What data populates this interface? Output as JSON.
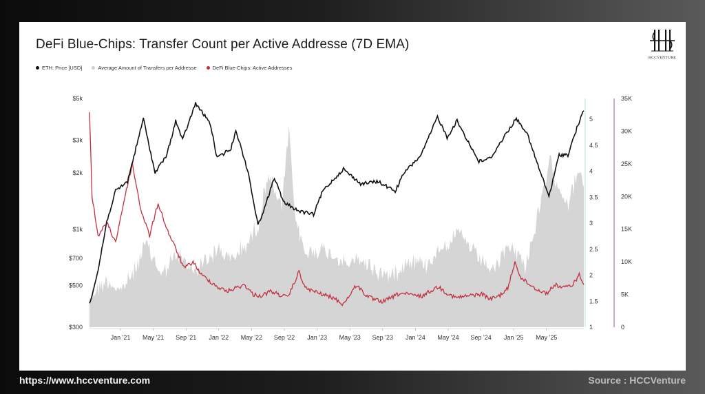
{
  "title": "DeFi Blue-Chips: Transfer Count per Active Addresse (7D  EMA)",
  "logo_text": "HCCVENTURE",
  "footer": {
    "url": "https://www.hccventure.com",
    "source": "Source : HCCVenture"
  },
  "chart_data": {
    "type": "line",
    "title": "DeFi Blue-Chips: Transfer Count per Active Addresse (7D  EMA)",
    "x_tick_labels": [
      "Jan '21",
      "May '21",
      "Sep '21",
      "Jan '22",
      "May '22",
      "Sep '22",
      "Jan '23",
      "May '23",
      "Sep '23",
      "Jan '24",
      "May '24",
      "Sep '24",
      "Jan '25",
      "May '25"
    ],
    "x_range": [
      "2020-11-01",
      "2025-08-10"
    ],
    "left_axis": {
      "scale": "log",
      "range": [
        300,
        5000
      ],
      "tick_labels": [
        "$5k",
        "$3k",
        "$2k",
        "$1k",
        "$700",
        "$500",
        "$300"
      ],
      "tick_values": [
        5000,
        3000,
        2000,
        1000,
        700,
        500,
        300
      ]
    },
    "mid_axis": {
      "range": [
        1,
        5.4
      ],
      "tick_labels": [
        "5",
        "4.5",
        "4",
        "3.5",
        "3",
        "2.5",
        "2",
        "1.5",
        "1"
      ],
      "tick_values": [
        5,
        4.5,
        4,
        3.5,
        3,
        2.5,
        2,
        1.5,
        1
      ]
    },
    "right_axis": {
      "range": [
        0,
        35000
      ],
      "tick_labels": [
        "35K",
        "30K",
        "25K",
        "20K",
        "15K",
        "10K",
        "5K",
        "0"
      ],
      "tick_values": [
        35000,
        30000,
        25000,
        20000,
        15000,
        10000,
        5000,
        0
      ]
    },
    "series": [
      {
        "name": "ETH: Price [USD]",
        "color": "#111111",
        "axis": "left",
        "points": [
          [
            "2020-11-01",
            400
          ],
          [
            "2020-12-01",
            600
          ],
          [
            "2021-01-01",
            1100
          ],
          [
            "2021-02-01",
            1600
          ],
          [
            "2021-03-15",
            1800
          ],
          [
            "2021-05-10",
            3900
          ],
          [
            "2021-06-20",
            2000
          ],
          [
            "2021-08-01",
            2500
          ],
          [
            "2021-09-01",
            3800
          ],
          [
            "2021-09-25",
            3000
          ],
          [
            "2021-11-10",
            4700
          ],
          [
            "2021-12-31",
            3700
          ],
          [
            "2022-01-25",
            2400
          ],
          [
            "2022-03-15",
            2700
          ],
          [
            "2022-04-01",
            3400
          ],
          [
            "2022-05-15",
            2000
          ],
          [
            "2022-06-18",
            1050
          ],
          [
            "2022-07-15",
            1350
          ],
          [
            "2022-08-15",
            1900
          ],
          [
            "2022-09-15",
            1400
          ],
          [
            "2022-11-10",
            1250
          ],
          [
            "2022-12-31",
            1200
          ],
          [
            "2023-02-01",
            1600
          ],
          [
            "2023-04-15",
            2100
          ],
          [
            "2023-06-15",
            1750
          ],
          [
            "2023-08-15",
            1800
          ],
          [
            "2023-10-15",
            1600
          ],
          [
            "2023-11-15",
            2000
          ],
          [
            "2024-01-15",
            2500
          ],
          [
            "2024-03-12",
            4000
          ],
          [
            "2024-04-15",
            3100
          ],
          [
            "2024-05-20",
            3800
          ],
          [
            "2024-08-05",
            2300
          ],
          [
            "2024-09-15",
            2400
          ],
          [
            "2024-11-12",
            3300
          ],
          [
            "2024-12-15",
            3900
          ],
          [
            "2025-01-20",
            3300
          ],
          [
            "2025-03-01",
            2200
          ],
          [
            "2025-04-09",
            1500
          ],
          [
            "2025-05-15",
            2500
          ],
          [
            "2025-06-15",
            2500
          ],
          [
            "2025-07-20",
            3600
          ],
          [
            "2025-08-10",
            4300
          ]
        ]
      },
      {
        "name": "Average Amount of Transfers per Addresse",
        "color": "#d3d3d3",
        "axis": "mid",
        "points": [
          [
            "2020-11-01",
            1.6
          ],
          [
            "2021-01-01",
            1.9
          ],
          [
            "2021-02-15",
            1.7
          ],
          [
            "2021-04-01",
            2.0
          ],
          [
            "2021-05-20",
            2.6
          ],
          [
            "2021-07-15",
            2.0
          ],
          [
            "2021-09-01",
            2.4
          ],
          [
            "2021-11-01",
            2.1
          ],
          [
            "2021-12-20",
            2.3
          ],
          [
            "2022-02-01",
            2.5
          ],
          [
            "2022-03-15",
            2.3
          ],
          [
            "2022-05-10",
            2.6
          ],
          [
            "2022-06-20",
            3.0
          ],
          [
            "2022-07-25",
            4.0
          ],
          [
            "2022-08-15",
            3.6
          ],
          [
            "2022-09-10",
            3.3
          ],
          [
            "2022-10-05",
            4.8
          ],
          [
            "2022-10-25",
            3.2
          ],
          [
            "2022-12-01",
            2.4
          ],
          [
            "2023-01-15",
            2.5
          ],
          [
            "2023-03-10",
            2.4
          ],
          [
            "2023-05-01",
            2.2
          ],
          [
            "2023-06-15",
            2.3
          ],
          [
            "2023-08-01",
            2.1
          ],
          [
            "2023-10-01",
            2.0
          ],
          [
            "2023-12-01",
            2.3
          ],
          [
            "2024-02-01",
            2.2
          ],
          [
            "2024-04-01",
            2.6
          ],
          [
            "2024-06-01",
            2.8
          ],
          [
            "2024-08-01",
            2.3
          ],
          [
            "2024-10-01",
            2.1
          ],
          [
            "2024-11-20",
            2.6
          ],
          [
            "2025-01-15",
            2.2
          ],
          [
            "2025-02-20",
            2.9
          ],
          [
            "2025-03-20",
            3.6
          ],
          [
            "2025-04-15",
            4.2
          ],
          [
            "2025-05-20",
            3.6
          ],
          [
            "2025-06-20",
            3.4
          ],
          [
            "2025-07-20",
            4.0
          ],
          [
            "2025-08-10",
            3.7
          ]
        ]
      },
      {
        "name": "DeFi Blue-Chips: Active Addresses",
        "color": "#c0303f",
        "axis": "right",
        "points": [
          [
            "2020-11-01",
            33000
          ],
          [
            "2020-11-10",
            20000
          ],
          [
            "2020-12-01",
            14000
          ],
          [
            "2021-01-01",
            16000
          ],
          [
            "2021-02-01",
            13000
          ],
          [
            "2021-03-01",
            19000
          ],
          [
            "2021-04-01",
            25000
          ],
          [
            "2021-05-01",
            18000
          ],
          [
            "2021-06-01",
            14000
          ],
          [
            "2021-07-01",
            19000
          ],
          [
            "2021-08-01",
            15000
          ],
          [
            "2021-09-01",
            12000
          ],
          [
            "2021-10-01",
            9000
          ],
          [
            "2021-11-01",
            10000
          ],
          [
            "2021-12-01",
            8000
          ],
          [
            "2022-01-01",
            7000
          ],
          [
            "2022-02-01",
            6000
          ],
          [
            "2022-03-01",
            5500
          ],
          [
            "2022-05-01",
            6500
          ],
          [
            "2022-06-01",
            5000
          ],
          [
            "2022-07-01",
            4800
          ],
          [
            "2022-08-01",
            5500
          ],
          [
            "2022-09-01",
            5000
          ],
          [
            "2022-10-01",
            4500
          ],
          [
            "2022-11-10",
            8500
          ],
          [
            "2022-12-01",
            6000
          ],
          [
            "2023-01-01",
            5500
          ],
          [
            "2023-02-01",
            5000
          ],
          [
            "2023-03-10",
            4500
          ],
          [
            "2023-04-15",
            3500
          ],
          [
            "2023-06-01",
            6500
          ],
          [
            "2023-07-01",
            5000
          ],
          [
            "2023-08-01",
            4200
          ],
          [
            "2023-09-01",
            3900
          ],
          [
            "2023-10-01",
            4500
          ],
          [
            "2023-11-01",
            5200
          ],
          [
            "2023-12-01",
            5000
          ],
          [
            "2024-01-15",
            4700
          ],
          [
            "2024-02-15",
            5500
          ],
          [
            "2024-03-15",
            6200
          ],
          [
            "2024-04-15",
            5200
          ],
          [
            "2024-05-15",
            4500
          ],
          [
            "2024-06-15",
            4700
          ],
          [
            "2024-07-15",
            4900
          ],
          [
            "2024-08-15",
            5100
          ],
          [
            "2024-09-15",
            4300
          ],
          [
            "2024-10-15",
            4800
          ],
          [
            "2024-11-15",
            5900
          ],
          [
            "2024-12-10",
            10000
          ],
          [
            "2025-01-01",
            7500
          ],
          [
            "2025-02-01",
            6500
          ],
          [
            "2025-03-01",
            5700
          ],
          [
            "2025-04-01",
            5200
          ],
          [
            "2025-05-01",
            6500
          ],
          [
            "2025-06-01",
            6000
          ],
          [
            "2025-07-01",
            6500
          ],
          [
            "2025-07-25",
            8000
          ],
          [
            "2025-08-10",
            6500
          ]
        ]
      }
    ],
    "grid": false
  }
}
